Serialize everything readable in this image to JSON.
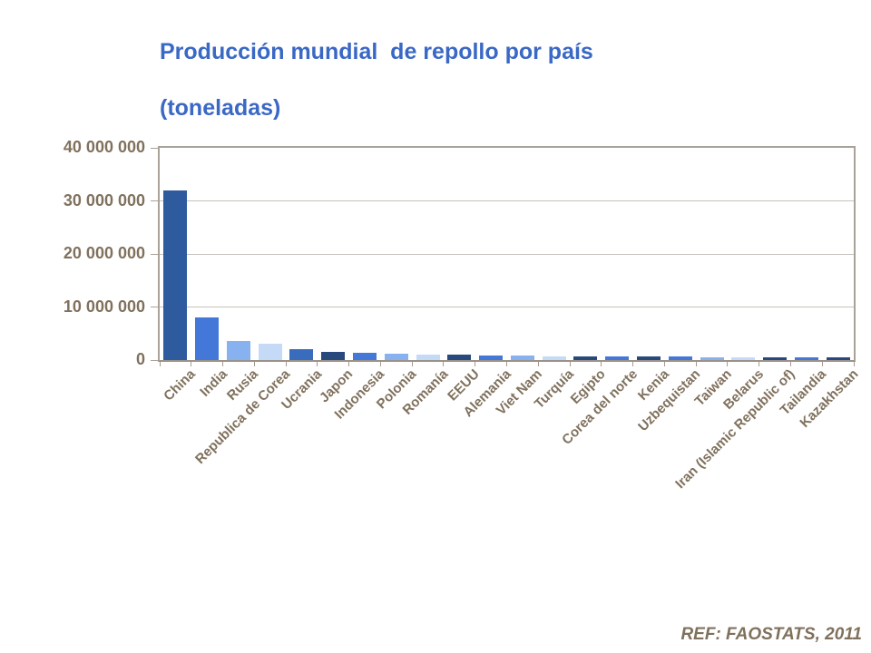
{
  "title": {
    "line1": "Producción mundial  de repollo por país",
    "line2": "(toneladas)"
  },
  "footer": {
    "ref": "REF: FAOSTATS, 2011"
  },
  "colors": {
    "title_text": "#3a68c5",
    "axis_text": "#80715d",
    "axis_line": "#aaa198",
    "gridline": "#c6c2ba",
    "background": "#ffffff",
    "palette_dark_steel": "#2e5a9e",
    "palette_bright_blue": "#4478d8",
    "palette_light_blue": "#88b1f0",
    "palette_pale_blue": "#c5daf6",
    "palette_medium_blue": "#3a6cbe",
    "palette_navy": "#27497e"
  },
  "chart_data": {
    "type": "bar",
    "title": "Producción mundial de repollo por país (toneladas)",
    "xlabel": "",
    "ylabel": "",
    "legend": "none",
    "grid": "horizontal",
    "ylim": [
      0,
      40000000
    ],
    "y_ticks": [
      {
        "label": "40 000 000",
        "value": 40000000
      },
      {
        "label": "30 000 000",
        "value": 30000000
      },
      {
        "label": "20 000 000",
        "value": 20000000
      },
      {
        "label": "10 000 000",
        "value": 10000000
      },
      {
        "label": "0",
        "value": 0
      }
    ],
    "categories": [
      "China",
      "India",
      "Rusia",
      "Republica de Corea",
      "Ucrania",
      "Japon",
      "Indonesia",
      "Polonia",
      "Romanía",
      "EEUU",
      "Alemania",
      "Viet Nam",
      "Turquía",
      "Egipto",
      "Corea del norte",
      "Kenia",
      "Uzbequistan",
      "Taiwan",
      "Belarus",
      "Iran (Islamic Republic of)",
      "Tailandia",
      "Kazakhstan"
    ],
    "values": [
      32000000,
      8000000,
      3600000,
      3100000,
      2000000,
      1500000,
      1450000,
      1250000,
      1100000,
      1050000,
      850000,
      800000,
      750000,
      720000,
      700000,
      680000,
      650000,
      560000,
      540000,
      520000,
      500000,
      450000
    ],
    "bar_colors": [
      "#2e5a9e",
      "#4478d8",
      "#88b1f0",
      "#c5daf6",
      "#3a6cbe",
      "#27497e",
      "#4478d8",
      "#88b1f0",
      "#c5daf6",
      "#27497e",
      "#4478d8",
      "#88b1f0",
      "#c5daf6",
      "#27497e",
      "#4478d8",
      "#27497e",
      "#4478d8",
      "#88b1f0",
      "#c5daf6",
      "#27497e",
      "#4478d8",
      "#27497e"
    ],
    "source": "REF: FAOSTATS, 2011"
  }
}
